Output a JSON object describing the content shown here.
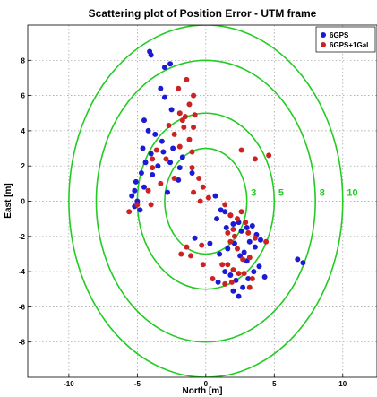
{
  "chart_data": {
    "type": "scatter",
    "title": "Scattering plot of Position Error - UTM frame",
    "xlabel": "North [m]",
    "ylabel": "East [m]",
    "xlim": [
      -13,
      12.5
    ],
    "ylim": [
      -10,
      10
    ],
    "xticks": [
      -10,
      -5,
      0,
      5,
      10
    ],
    "yticks": [
      -8,
      -6,
      -4,
      -2,
      0,
      2,
      4,
      6,
      8
    ],
    "grid": true,
    "legend_position": "top-right",
    "rings": [
      {
        "radius": 3,
        "label": "3",
        "label_at": [
          3.3,
          0.3
        ]
      },
      {
        "radius": 5,
        "label": "5",
        "label_at": [
          5.3,
          0.3
        ]
      },
      {
        "radius": 8,
        "label": "8",
        "label_at": [
          8.3,
          0.3
        ]
      },
      {
        "radius": 10,
        "label": "10",
        "label_at": [
          10.3,
          0.3
        ]
      }
    ],
    "ring_color": "#22cc22",
    "series": [
      {
        "name": "6GPS",
        "color": "#1b1bd6",
        "points": [
          [
            -4.1,
            8.5
          ],
          [
            -4.0,
            8.3
          ],
          [
            -3.0,
            7.6
          ],
          [
            -2.6,
            7.8
          ],
          [
            -3.3,
            6.4
          ],
          [
            -3.0,
            5.9
          ],
          [
            -2.5,
            5.2
          ],
          [
            -4.5,
            4.6
          ],
          [
            -4.2,
            4.0
          ],
          [
            -3.7,
            3.8
          ],
          [
            -3.2,
            3.4
          ],
          [
            -4.6,
            3.0
          ],
          [
            -4.0,
            2.7
          ],
          [
            -3.1,
            2.8
          ],
          [
            -2.4,
            3.0
          ],
          [
            -4.4,
            2.2
          ],
          [
            -3.5,
            2.0
          ],
          [
            -2.6,
            2.2
          ],
          [
            -1.9,
            1.9
          ],
          [
            -4.7,
            1.6
          ],
          [
            -3.9,
            1.5
          ],
          [
            -5.2,
            0.6
          ],
          [
            -5.4,
            0.3
          ],
          [
            -5.0,
            0.0
          ],
          [
            -5.2,
            -0.3
          ],
          [
            -4.8,
            -0.5
          ],
          [
            -4.5,
            0.8
          ],
          [
            -5.1,
            1.1
          ],
          [
            -2.0,
            1.2
          ],
          [
            -2.8,
            0.5
          ],
          [
            -1.7,
            2.5
          ],
          [
            -1.0,
            1.6
          ],
          [
            0.7,
            0.3
          ],
          [
            1.1,
            -0.5
          ],
          [
            1.4,
            -0.6
          ],
          [
            0.8,
            -1.0
          ],
          [
            1.8,
            -0.8
          ],
          [
            2.0,
            -1.3
          ],
          [
            1.5,
            -1.5
          ],
          [
            2.4,
            -1.2
          ],
          [
            2.6,
            -1.7
          ],
          [
            3.0,
            -1.5
          ],
          [
            3.4,
            -1.4
          ],
          [
            3.7,
            -1.9
          ],
          [
            4.0,
            -2.2
          ],
          [
            3.2,
            -2.3
          ],
          [
            2.8,
            -2.9
          ],
          [
            3.6,
            -2.6
          ],
          [
            2.1,
            -2.4
          ],
          [
            1.6,
            -2.7
          ],
          [
            2.5,
            -3.1
          ],
          [
            3.0,
            -3.4
          ],
          [
            1.0,
            -3.0
          ],
          [
            1.4,
            -4.0
          ],
          [
            1.8,
            -4.2
          ],
          [
            2.2,
            -4.5
          ],
          [
            2.7,
            -4.9
          ],
          [
            2.0,
            -5.1
          ],
          [
            2.4,
            -5.4
          ],
          [
            3.1,
            -4.4
          ],
          [
            3.5,
            -4.0
          ],
          [
            3.9,
            -3.7
          ],
          [
            4.3,
            -4.3
          ],
          [
            0.3,
            -2.4
          ],
          [
            -0.8,
            -2.1
          ],
          [
            0.9,
            -4.6
          ],
          [
            6.7,
            -3.3
          ],
          [
            7.1,
            -3.5
          ]
        ]
      },
      {
        "name": "6GPS+1Gal",
        "color": "#cc2222",
        "points": [
          [
            -1.4,
            6.9
          ],
          [
            -2.0,
            6.4
          ],
          [
            -0.9,
            6.0
          ],
          [
            -1.2,
            5.5
          ],
          [
            -1.9,
            5.0
          ],
          [
            -1.5,
            4.8
          ],
          [
            -0.8,
            4.9
          ],
          [
            -2.7,
            4.3
          ],
          [
            -2.3,
            3.8
          ],
          [
            -1.6,
            4.2
          ],
          [
            -0.9,
            4.2
          ],
          [
            -1.2,
            3.5
          ],
          [
            -1.9,
            3.1
          ],
          [
            -1.0,
            2.8
          ],
          [
            -3.6,
            2.9
          ],
          [
            -2.9,
            2.4
          ],
          [
            -3.9,
            1.9
          ],
          [
            -2.3,
            1.3
          ],
          [
            -3.3,
            1.0
          ],
          [
            -4.2,
            0.6
          ],
          [
            -4.0,
            -0.2
          ],
          [
            -5.6,
            -0.6
          ],
          [
            -5.0,
            -0.2
          ],
          [
            -3.9,
            2.4
          ],
          [
            -1.0,
            1.9
          ],
          [
            -0.5,
            1.3
          ],
          [
            -0.2,
            0.8
          ],
          [
            0.2,
            0.2
          ],
          [
            -1.7,
            4.6
          ],
          [
            3.6,
            2.4
          ],
          [
            2.6,
            2.9
          ],
          [
            4.6,
            2.6
          ],
          [
            1.4,
            -0.2
          ],
          [
            1.8,
            -0.8
          ],
          [
            2.3,
            -1.0
          ],
          [
            2.0,
            -1.6
          ],
          [
            2.9,
            -1.2
          ],
          [
            3.1,
            -1.8
          ],
          [
            3.6,
            -2.1
          ],
          [
            4.4,
            -2.3
          ],
          [
            2.3,
            -2.7
          ],
          [
            1.8,
            -2.3
          ],
          [
            2.7,
            -3.3
          ],
          [
            3.2,
            -3.2
          ],
          [
            1.2,
            -3.6
          ],
          [
            1.6,
            -3.6
          ],
          [
            2.0,
            -3.9
          ],
          [
            2.4,
            -4.1
          ],
          [
            2.8,
            -4.1
          ],
          [
            3.4,
            -4.4
          ],
          [
            1.4,
            -4.7
          ],
          [
            1.9,
            -4.6
          ],
          [
            -0.2,
            -3.6
          ],
          [
            -0.3,
            -2.5
          ],
          [
            -1.4,
            -2.6
          ],
          [
            -1.1,
            -3.1
          ],
          [
            -1.8,
            -3.0
          ],
          [
            0.5,
            -4.4
          ],
          [
            3.2,
            -4.9
          ],
          [
            2.6,
            -0.6
          ],
          [
            1.6,
            -1.8
          ],
          [
            2.1,
            -2.0
          ],
          [
            -0.9,
            0.5
          ],
          [
            -0.4,
            0.0
          ]
        ]
      }
    ]
  }
}
